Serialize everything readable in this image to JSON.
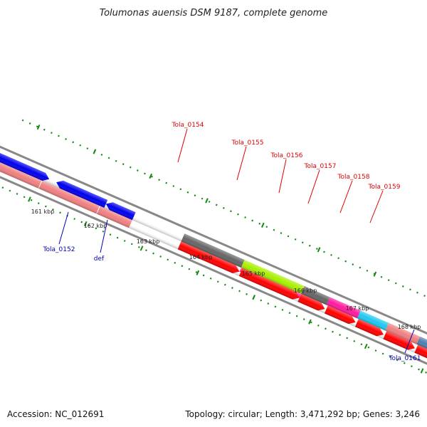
{
  "title": "Tolumonas auensis DSM 9187, complete genome",
  "footer": {
    "accession": "Accession: NC_012691",
    "summary": "Topology: circular; Length: 3,471,292 bp; Genes: 3,246"
  },
  "scale_labels": [
    "161 kbp",
    "162 kbp",
    "163 kbp",
    "164 kbp",
    "165 kbp",
    "166 kbp",
    "167 kbp",
    "168 kbp"
  ],
  "gene_labels": {
    "tola_0152": "Tola_0152",
    "def": "def",
    "tola_0154": "Tola_0154",
    "tola_0155": "Tola_0155",
    "tola_0156": "Tola_0156",
    "tola_0157": "Tola_0157",
    "tola_0158": "Tola_0158",
    "tola_0159": "Tola_0159",
    "tola_0161": "Tola_0161"
  },
  "colors": {
    "cds_red": "#ff0000",
    "gene_salmon": "#f08080",
    "blue": "#0000ee",
    "dark_gray": "#666666",
    "lime": "#a8f000",
    "magenta": "#ff1aa0",
    "cyan": "#1ec8f0",
    "steel": "#4f7fae",
    "light_gray": "#cccccc",
    "backbone": "#888888",
    "tick_green": "#118811",
    "label_red": "#dd0000",
    "label_blue": "#0000bb"
  }
}
